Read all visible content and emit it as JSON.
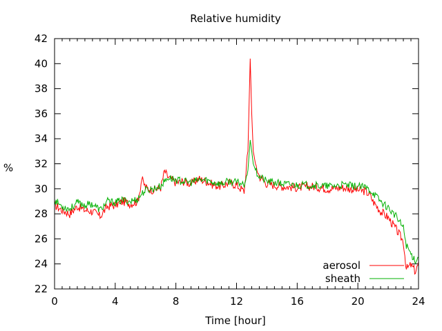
{
  "chart_data": {
    "type": "line",
    "title": "Relative humidity",
    "xlabel": "Time [hour]",
    "ylabel": "%",
    "xlim": [
      0,
      24
    ],
    "ylim": [
      22,
      42
    ],
    "x_ticks": [
      0,
      4,
      8,
      12,
      16,
      20,
      24
    ],
    "y_ticks": [
      22,
      24,
      26,
      28,
      30,
      32,
      34,
      36,
      38,
      40,
      42
    ],
    "grid": false,
    "legend_position": "bottom-right",
    "series": [
      {
        "name": "aerosol",
        "color": "#ff0000",
        "x": [
          0,
          0.5,
          1,
          1.5,
          2,
          2.5,
          3,
          3.5,
          4,
          4.5,
          5,
          5.5,
          5.75,
          6,
          6.5,
          7,
          7.25,
          7.5,
          8,
          8.5,
          9,
          9.5,
          10,
          10.5,
          11,
          11.5,
          12,
          12.5,
          12.75,
          12.9,
          13,
          13.1,
          13.25,
          13.5,
          14,
          15,
          16,
          17,
          18,
          19,
          20,
          20.5,
          20.8,
          21,
          21.5,
          22,
          22.5,
          23,
          23.2,
          23.5,
          23.8,
          24
        ],
        "y": [
          28.7,
          28.3,
          28.0,
          28.6,
          28.3,
          28.2,
          27.8,
          28.6,
          28.7,
          29.0,
          28.8,
          29.0,
          30.8,
          30.1,
          29.9,
          30.1,
          31.4,
          30.9,
          30.5,
          30.6,
          30.4,
          30.8,
          30.6,
          30.3,
          30.2,
          30.5,
          30.3,
          29.8,
          33.0,
          40.4,
          36.0,
          33.0,
          32.0,
          31.0,
          30.4,
          30.2,
          30.1,
          30.2,
          30.0,
          30.1,
          29.9,
          29.8,
          29.5,
          29.0,
          28.2,
          27.7,
          26.8,
          25.8,
          23.6,
          23.9,
          23.4,
          24.0
        ]
      },
      {
        "name": "sheath",
        "color": "#00b000",
        "x": [
          0,
          0.5,
          1,
          1.5,
          2,
          2.5,
          3,
          3.5,
          4,
          4.5,
          5,
          5.5,
          5.75,
          6,
          6.5,
          7,
          7.25,
          7.5,
          8,
          8.5,
          9,
          9.5,
          10,
          10.5,
          11,
          11.5,
          12,
          12.5,
          12.75,
          12.9,
          13,
          13.1,
          13.25,
          13.5,
          14,
          15,
          16,
          17,
          18,
          19,
          20,
          20.5,
          20.8,
          21,
          21.5,
          22,
          22.5,
          23,
          23.2,
          23.5,
          23.8,
          24
        ],
        "y": [
          29.1,
          28.6,
          28.4,
          28.9,
          28.7,
          28.8,
          28.3,
          29.0,
          28.9,
          29.1,
          29.0,
          29.2,
          29.6,
          29.9,
          30.0,
          30.2,
          30.6,
          30.9,
          30.7,
          30.6,
          30.5,
          30.7,
          30.7,
          30.5,
          30.4,
          30.6,
          30.5,
          30.4,
          31.5,
          33.9,
          33.0,
          32.0,
          31.5,
          31.0,
          30.6,
          30.4,
          30.3,
          30.3,
          30.2,
          30.3,
          30.2,
          30.1,
          29.9,
          29.7,
          29.0,
          28.5,
          27.8,
          26.9,
          25.5,
          24.8,
          24.3,
          24.5
        ]
      }
    ]
  }
}
